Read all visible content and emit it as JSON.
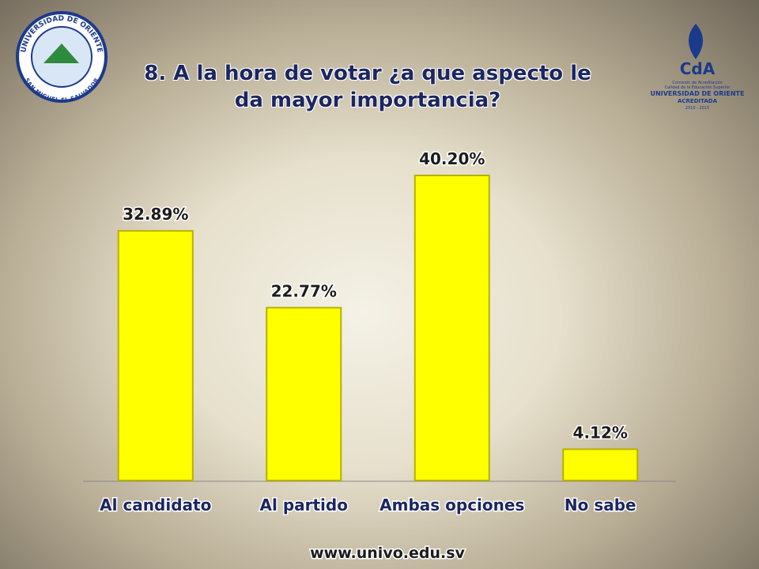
{
  "chart_data": {
    "type": "bar",
    "title": "8. A la hora de votar ¿a que aspecto le da mayor importancia?",
    "categories": [
      "Al candidato",
      "Al partido",
      "Ambas opciones",
      "No sabe"
    ],
    "values": [
      32.89,
      22.77,
      40.2,
      4.12
    ],
    "value_labels": [
      "32.89%",
      "22.77%",
      "40.20%",
      "4.12%"
    ],
    "color": "#ffff00"
  },
  "footer": "www.univo.edu.sv",
  "logo_left": {
    "ring_top": "UNIVERSIDAD DE ORIENTE",
    "ring_bottom": "SAN MIGUEL EL SALVADOR"
  },
  "logo_right": {
    "mark": "CdA",
    "line1": "Comisión de Acreditación",
    "line2": "Calidad de la Educación Superior",
    "line3": "UNIVERSIDAD DE ORIENTE",
    "line4": "ACREDITADA",
    "line5": "2010 - 2015"
  }
}
